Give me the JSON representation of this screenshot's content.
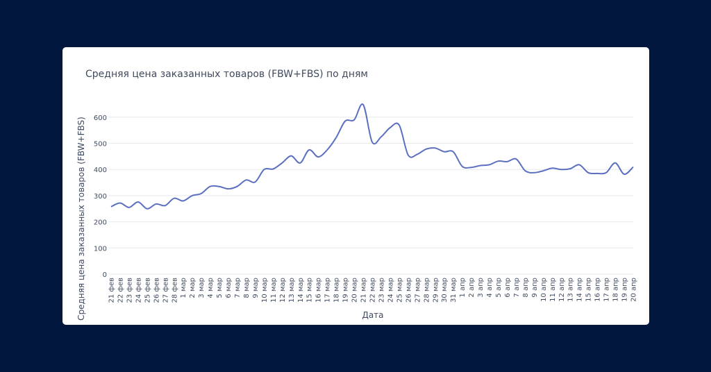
{
  "chart_data": {
    "type": "line",
    "title": "Средняя цена заказанных товаров (FBW+FBS) по дням",
    "xlabel": "Дата",
    "ylabel": "Средняя цена заказанных товаров (FBW+FBS)",
    "ylim": [
      0,
      650
    ],
    "yticks": [
      0,
      100,
      200,
      300,
      400,
      500,
      600
    ],
    "grid": true,
    "line_color": "#5a6fc0",
    "categories": [
      "21 фев",
      "22 фев",
      "23 фев",
      "24 фев",
      "25 фев",
      "26 фев",
      "27 фев",
      "28 фев",
      "1 мар",
      "2 мар",
      "3 мар",
      "4 мар",
      "5 мар",
      "6 мар",
      "7 мар",
      "8 мар",
      "9 мар",
      "10 мар",
      "11 мар",
      "12 мар",
      "13 мар",
      "14 мар",
      "15 мар",
      "16 мар",
      "17 мар",
      "18 мар",
      "19 мар",
      "20 мар",
      "21 мар",
      "22 мар",
      "23 мар",
      "24 мар",
      "25 мар",
      "26 мар",
      "27 мар",
      "28 мар",
      "29 мар",
      "30 мар",
      "31 мар",
      "1 апр",
      "2 апр",
      "3 апр",
      "4 апр",
      "5 апр",
      "6 апр",
      "7 апр",
      "8 апр",
      "9 апр",
      "10 апр",
      "11 апр",
      "12 апр",
      "13 апр",
      "14 апр",
      "15 апр",
      "16 апр",
      "17 апр",
      "18 апр",
      "19 апр",
      "20 апр"
    ],
    "values": [
      258,
      272,
      255,
      276,
      250,
      268,
      262,
      290,
      280,
      300,
      308,
      335,
      335,
      326,
      335,
      360,
      352,
      400,
      402,
      425,
      452,
      425,
      475,
      448,
      475,
      522,
      585,
      590,
      648,
      505,
      525,
      560,
      570,
      455,
      458,
      478,
      482,
      468,
      468,
      412,
      408,
      415,
      418,
      432,
      430,
      440,
      395,
      388,
      395,
      405,
      400,
      403,
      418,
      388,
      385,
      388,
      425,
      382,
      410
    ]
  }
}
